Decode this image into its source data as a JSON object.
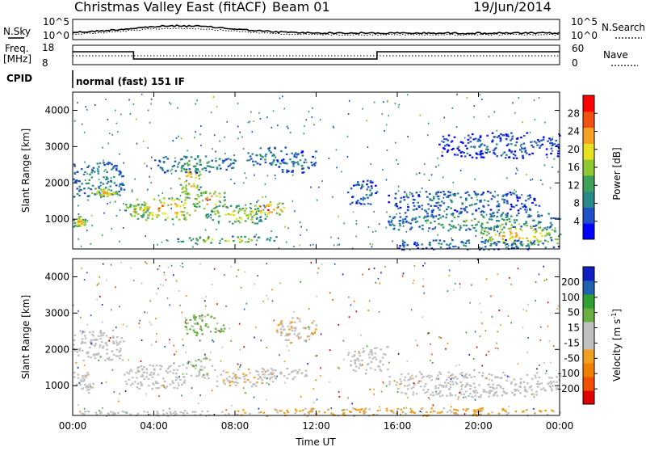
{
  "header": {
    "title": "Christmas Valley East (fitACF)",
    "beam": "Beam 01",
    "date": "19/Jun/2014"
  },
  "noise_panel": {
    "left_label": "N.Sky",
    "right_label": "N.Search",
    "left_ticks": [
      "10^5",
      "10^0"
    ],
    "right_ticks": [
      "10^5",
      "10^0"
    ]
  },
  "freq_panel": {
    "left_label_1": "Freq.",
    "left_label_2": "[MHz]",
    "right_label": "Nave",
    "left_ticks": [
      "18",
      "8"
    ],
    "right_ticks": [
      "60",
      "0"
    ]
  },
  "cpid": {
    "label": "CPID",
    "program": "normal (fast) 151 IF"
  },
  "chart_data": [
    {
      "type": "heatmap",
      "panel": "power",
      "ylabel": "Slant Range [km]",
      "xlabel": "Time UT",
      "x_ticks": [
        "00:00",
        "04:00",
        "08:00",
        "12:00",
        "16:00",
        "20:00",
        "00:00"
      ],
      "y_ticks": [
        "1000",
        "2000",
        "3000",
        "4000"
      ],
      "ylim": [
        180,
        4500
      ],
      "xlim_hours": [
        0,
        24
      ],
      "colorbar": {
        "label": "Power [dB]",
        "ticks": [
          "28",
          "24",
          "20",
          "16",
          "12",
          "8",
          "4"
        ],
        "range": [
          0,
          30
        ],
        "colors": [
          "#0000ff",
          "#2050c8",
          "#2a8a8a",
          "#3fa05a",
          "#8fc832",
          "#e8e020",
          "#f5a020",
          "#f05010",
          "#ff0000"
        ]
      },
      "regions": [
        {
          "t": [
            0.0,
            0.6
          ],
          "r": [
            800,
            1100
          ],
          "level": 22
        },
        {
          "t": [
            0.0,
            2.5
          ],
          "r": [
            1600,
            2600
          ],
          "level": 10
        },
        {
          "t": [
            0.9,
            2.2
          ],
          "r": [
            1650,
            1850
          ],
          "level": 22
        },
        {
          "t": [
            2.5,
            3.8
          ],
          "r": [
            1100,
            1450
          ],
          "level": 20
        },
        {
          "t": [
            3.0,
            6.0
          ],
          "r": [
            1000,
            1600
          ],
          "level": 24
        },
        {
          "t": [
            5.2,
            6.3
          ],
          "r": [
            1600,
            2600
          ],
          "level": 22
        },
        {
          "t": [
            6.0,
            7.5
          ],
          "r": [
            1300,
            1800
          ],
          "level": 22
        },
        {
          "t": [
            6.5,
            9.5
          ],
          "r": [
            900,
            1400
          ],
          "level": 18
        },
        {
          "t": [
            8.5,
            10.5
          ],
          "r": [
            1100,
            1500
          ],
          "level": 26
        },
        {
          "t": [
            5.0,
            10.0
          ],
          "r": [
            350,
            550
          ],
          "level": 16
        },
        {
          "t": [
            4.0,
            8.0
          ],
          "r": [
            2300,
            2800
          ],
          "level": 10
        },
        {
          "t": [
            8.5,
            10.5
          ],
          "r": [
            2500,
            3000
          ],
          "level": 10
        },
        {
          "t": [
            10.0,
            12.0
          ],
          "r": [
            2300,
            2900
          ],
          "level": 8
        },
        {
          "t": [
            13.5,
            15.0
          ],
          "r": [
            1400,
            2100
          ],
          "level": 8
        },
        {
          "t": [
            15.5,
            23.0
          ],
          "r": [
            1200,
            1800
          ],
          "level": 8
        },
        {
          "t": [
            15.5,
            24.0
          ],
          "r": [
            700,
            1200
          ],
          "level": 12
        },
        {
          "t": [
            20.0,
            24.0
          ],
          "r": [
            300,
            900
          ],
          "level": 22
        },
        {
          "t": [
            16.0,
            24.0
          ],
          "r": [
            180,
            450
          ],
          "level": 8
        },
        {
          "t": [
            18.0,
            24.0
          ],
          "r": [
            2700,
            3400
          ],
          "level": 6
        }
      ]
    },
    {
      "type": "heatmap",
      "panel": "velocity",
      "ylabel": "Slant Range [km]",
      "xlabel": "Time UT",
      "x_ticks": [
        "00:00",
        "04:00",
        "08:00",
        "12:00",
        "16:00",
        "20:00",
        "00:00"
      ],
      "y_ticks": [
        "1000",
        "2000",
        "3000",
        "4000"
      ],
      "ylim": [
        180,
        4500
      ],
      "xlim_hours": [
        0,
        24
      ],
      "colorbar": {
        "label": "Velocity [m s^-1]",
        "ticks": [
          "200",
          "100",
          "50",
          "15",
          "-15",
          "-50",
          "-100",
          "-200"
        ],
        "range": [
          -250,
          250
        ],
        "colors": [
          "#e00000",
          "#f05000",
          "#f08000",
          "#f0a020",
          "#c0c0c0",
          "#c0c0c0",
          "#6ab040",
          "#30a030",
          "#2060b0",
          "#1020c0"
        ]
      },
      "regions": [
        {
          "t": [
            0.0,
            2.5
          ],
          "r": [
            1700,
            2600
          ],
          "level": 0
        },
        {
          "t": [
            0.0,
            1.0
          ],
          "r": [
            800,
            1400
          ],
          "level": 0
        },
        {
          "t": [
            2.5,
            5.5
          ],
          "r": [
            900,
            1600
          ],
          "level": 0
        },
        {
          "t": [
            5.5,
            7.0
          ],
          "r": [
            1200,
            1800
          ],
          "level": 40
        },
        {
          "t": [
            7.0,
            10.0
          ],
          "r": [
            1000,
            1500
          ],
          "level": -40
        },
        {
          "t": [
            9.0,
            11.5
          ],
          "r": [
            1200,
            1500
          ],
          "level": 0
        },
        {
          "t": [
            5.5,
            7.5
          ],
          "r": [
            2400,
            3000
          ],
          "level": 60
        },
        {
          "t": [
            10.0,
            12.0
          ],
          "r": [
            2200,
            2900
          ],
          "level": -40
        },
        {
          "t": [
            13.5,
            15.5
          ],
          "r": [
            1400,
            2100
          ],
          "level": 0
        },
        {
          "t": [
            15.5,
            24.0
          ],
          "r": [
            700,
            1400
          ],
          "level": 0
        },
        {
          "t": [
            8.0,
            24.0
          ],
          "r": [
            180,
            400
          ],
          "level": -60
        },
        {
          "t": [
            0.0,
            8.0
          ],
          "r": [
            180,
            350
          ],
          "level": -20
        }
      ]
    }
  ]
}
